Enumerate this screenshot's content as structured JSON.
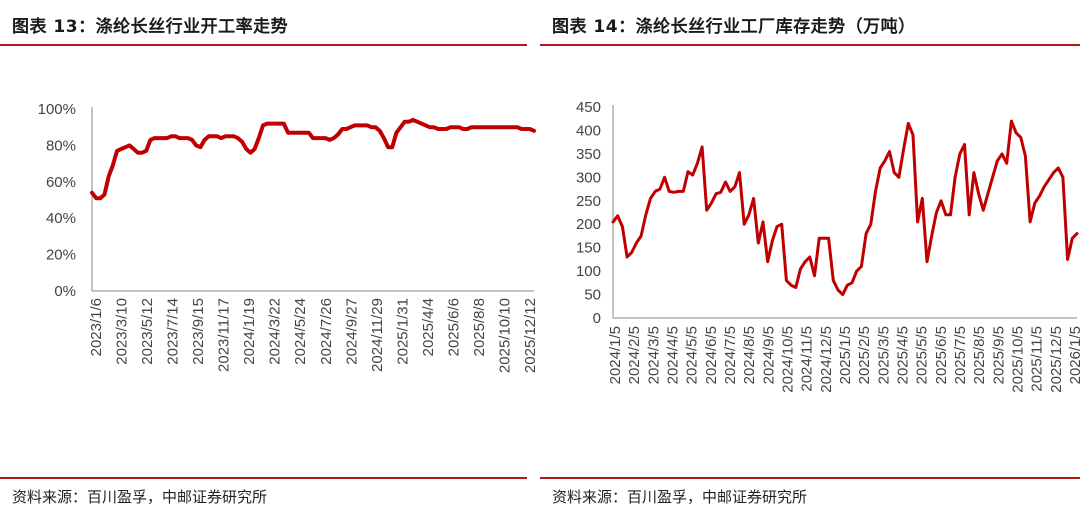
{
  "left": {
    "title": "图表 13：涤纶长丝行业开工率走势",
    "source": "资料来源：百川盈孚，中邮证券研究所"
  },
  "right": {
    "title": "图表 14：涤纶长丝行业工厂库存走势（万吨）",
    "source": "资料来源：百川盈孚，中邮证券研究所"
  },
  "chart_data": [
    {
      "type": "line",
      "title": "图表 13：涤纶长丝行业开工率走势",
      "xlabel": "",
      "ylabel": "",
      "ylim": [
        0,
        100
      ],
      "yticks": [
        "0%",
        "20%",
        "40%",
        "60%",
        "80%",
        "100%"
      ],
      "x_tick_labels": [
        "2023/1/6",
        "2023/3/10",
        "2023/5/12",
        "2023/7/14",
        "2023/9/15",
        "2023/11/17",
        "2024/1/19",
        "2024/3/22",
        "2024/5/24",
        "2024/7/26",
        "2024/9/27",
        "2024/11/29",
        "2025/1/31",
        "2025/4/4",
        "2025/6/6",
        "2025/8/8",
        "2025/10/10",
        "2025/12/12"
      ],
      "grid": false,
      "legend": "none",
      "color": "#c00000",
      "series": [
        {
          "values": [
            54,
            51,
            51,
            53,
            63,
            69,
            77,
            78,
            79,
            80,
            78,
            76,
            76,
            77,
            83,
            84,
            84,
            84,
            84,
            85,
            85,
            84,
            84,
            84,
            83,
            80,
            79,
            83,
            85,
            85,
            85,
            84,
            85,
            85,
            85,
            84,
            82,
            78,
            76,
            78,
            84,
            91,
            92,
            92,
            92,
            92,
            92,
            87,
            87,
            87,
            87,
            87,
            87,
            84,
            84,
            84,
            84,
            83,
            84,
            86,
            89,
            89,
            90,
            91,
            91,
            91,
            91,
            90,
            90,
            88,
            84,
            79,
            79,
            87,
            90,
            93,
            93,
            94,
            93,
            92,
            91,
            90,
            90,
            89,
            89,
            89,
            90,
            90,
            90,
            89,
            89,
            90,
            90,
            90,
            90,
            90,
            90,
            90,
            90,
            90,
            90,
            90,
            90,
            89,
            89,
            89,
            88
          ]
        }
      ]
    },
    {
      "type": "line",
      "title": "图表 14：涤纶长丝行业工厂库存走势（万吨）",
      "xlabel": "",
      "ylabel": "",
      "ylim": [
        0,
        450
      ],
      "yticks": [
        "0",
        "50",
        "100",
        "150",
        "200",
        "250",
        "300",
        "350",
        "400",
        "450"
      ],
      "x_tick_labels": [
        "2024/1/5",
        "2024/2/5",
        "2024/3/5",
        "2024/4/5",
        "2024/5/5",
        "2024/6/5",
        "2024/7/5",
        "2024/8/5",
        "2024/9/5",
        "2024/10/5",
        "2024/11/5",
        "2024/12/5",
        "2025/1/5",
        "2025/2/5",
        "2025/3/5",
        "2025/4/5",
        "2025/5/5",
        "2025/6/5",
        "2025/7/5",
        "2025/8/5",
        "2025/9/5",
        "2025/10/5",
        "2025/11/5",
        "2025/12/5",
        "2026/1/5"
      ],
      "grid": false,
      "legend": "none",
      "color": "#c00000",
      "series": [
        {
          "values": [
            205,
            218,
            195,
            130,
            140,
            160,
            175,
            220,
            255,
            270,
            275,
            300,
            270,
            268,
            270,
            270,
            312,
            305,
            330,
            365,
            230,
            245,
            265,
            268,
            290,
            270,
            280,
            310,
            200,
            220,
            255,
            160,
            205,
            120,
            165,
            195,
            200,
            80,
            70,
            65,
            105,
            120,
            130,
            90,
            170,
            170,
            170,
            80,
            60,
            50,
            70,
            75,
            100,
            110,
            180,
            200,
            270,
            320,
            335,
            355,
            310,
            300,
            360,
            415,
            390,
            205,
            255,
            120,
            175,
            225,
            250,
            220,
            220,
            300,
            350,
            370,
            220,
            310,
            265,
            230,
            265,
            300,
            335,
            350,
            330,
            420,
            395,
            385,
            345,
            205,
            245,
            260,
            280,
            295,
            310,
            320,
            300,
            125,
            170,
            180
          ]
        }
      ]
    }
  ]
}
